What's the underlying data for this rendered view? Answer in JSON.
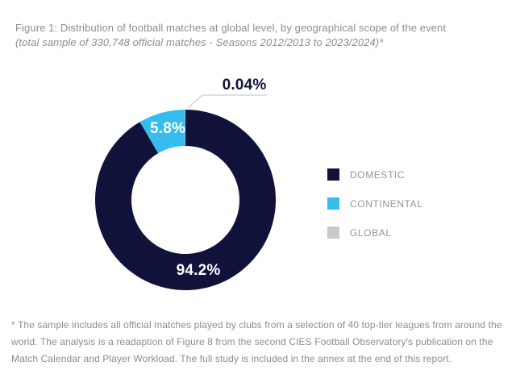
{
  "figure": {
    "title": "Figure 1: Distribution of football matches at global level, by geographical scope of the event",
    "subtitle": "(total sample of 330,748 official matches - Seasons 2012/2013 to 2023/2024)*",
    "footnote": "* The sample includes all official matches played by clubs from a selection of 40 top-tier leagues from around the world.  The analysis is a readaption of Figure 8 from the second CIES Football Observatory's publication on the Match Calendar and Player Workload. The full study is included in the annex at the end of this report."
  },
  "chart_data": {
    "type": "pie",
    "variant": "donut",
    "title": "Distribution of football matches at global level, by geographical scope of the event",
    "subtitle": "(total sample of 330,748 official matches - Seasons 2012/2013 to 2023/2024)*",
    "total_sample": "330,748 official matches",
    "legend_position": "right",
    "start_angle_deg": 0,
    "direction": "clockwise",
    "series": [
      {
        "name": "DOMESTIC",
        "value": 94.2,
        "label": "94.2%",
        "color": "#10123A",
        "sweep_deg": 329.7
      },
      {
        "name": "CONTINENTAL",
        "value": 5.8,
        "label": "5.8%",
        "color": "#36BDEE",
        "sweep_deg": 30.0
      },
      {
        "name": "GLOBAL",
        "value": 0.04,
        "label": "0.04%",
        "color": "#C8C9CB",
        "sweep_deg": 0.3
      }
    ],
    "colors": {
      "background": "#FFFFFF",
      "callout_line": "#CBCDCF",
      "title_text": "#8B8D90",
      "legend_text": "#939598"
    }
  }
}
